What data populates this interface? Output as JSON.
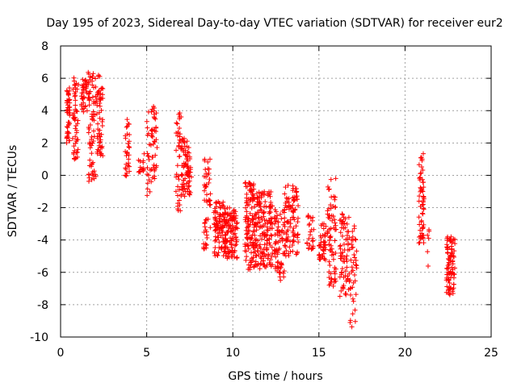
{
  "colors": {
    "series": "#ff0000",
    "grid": "#a0a0a0",
    "axis": "#000000"
  },
  "chart_data": {
    "type": "scatter",
    "title": "Day 195 of 2023, Sidereal Day-to-day VTEC variation (SDTVAR) for receiver eur2",
    "xlabel": "GPS time / hours",
    "ylabel": "SDTVAR / TECUs",
    "xlim": [
      0,
      25
    ],
    "ylim": [
      -10,
      8
    ],
    "xticks": [
      0,
      5,
      10,
      15,
      20,
      25
    ],
    "yticks": [
      -10,
      -8,
      -6,
      -4,
      -2,
      0,
      2,
      4,
      6,
      8
    ],
    "xtick_labels": [
      "0",
      "5",
      "10",
      "15",
      "20",
      "25"
    ],
    "ytick_labels": [
      "-10",
      "-8",
      "-6",
      "-4",
      "-2",
      "0",
      "2",
      "4",
      "6",
      "8"
    ],
    "grid": true,
    "marker": "plus",
    "series": [
      {
        "name": "SDTVAR",
        "clusters": [
          {
            "x": [
              0.35,
              0.55
            ],
            "y": [
              2.0,
              5.5
            ],
            "n": 45
          },
          {
            "x": [
              0.7,
              1.05
            ],
            "y": [
              1.0,
              6.2
            ],
            "n": 50
          },
          {
            "x": [
              1.2,
              1.55
            ],
            "y": [
              3.8,
              6.0
            ],
            "n": 35
          },
          {
            "x": [
              1.6,
              2.05
            ],
            "y": [
              -0.4,
              6.5
            ],
            "n": 70
          },
          {
            "x": [
              2.1,
              2.45
            ],
            "y": [
              1.2,
              6.2
            ],
            "n": 55
          },
          {
            "x": [
              3.75,
              4.0
            ],
            "y": [
              -0.2,
              3.6
            ],
            "n": 30
          },
          {
            "x": [
              4.5,
              4.85
            ],
            "y": [
              0.2,
              1.5
            ],
            "n": 15
          },
          {
            "x": [
              5.0,
              5.6
            ],
            "y": [
              -1.5,
              4.3
            ],
            "n": 60
          },
          {
            "x": [
              6.7,
              7.0
            ],
            "y": [
              -2.4,
              3.9
            ],
            "n": 40
          },
          {
            "x": [
              7.0,
              7.6
            ],
            "y": [
              -1.4,
              2.3
            ],
            "n": 80
          },
          {
            "x": [
              8.3,
              8.7
            ],
            "y": [
              -5.0,
              1.0
            ],
            "n": 50
          },
          {
            "x": [
              8.9,
              9.6
            ],
            "y": [
              -5.0,
              -1.6
            ],
            "n": 90
          },
          {
            "x": [
              9.5,
              10.3
            ],
            "y": [
              -5.2,
              -2.0
            ],
            "n": 110
          },
          {
            "x": [
              10.7,
              11.3
            ],
            "y": [
              -5.9,
              -0.3
            ],
            "n": 120
          },
          {
            "x": [
              11.3,
              12.3
            ],
            "y": [
              -5.8,
              -1.0
            ],
            "n": 160
          },
          {
            "x": [
              12.4,
              13.0
            ],
            "y": [
              -6.5,
              -2.0
            ],
            "n": 70
          },
          {
            "x": [
              13.0,
              13.8
            ],
            "y": [
              -5.0,
              -0.6
            ],
            "n": 100
          },
          {
            "x": [
              14.3,
              14.7
            ],
            "y": [
              -4.6,
              -2.4
            ],
            "n": 25
          },
          {
            "x": [
              15.0,
              15.4
            ],
            "y": [
              -5.5,
              -3.0
            ],
            "n": 40
          },
          {
            "x": [
              15.5,
              16.0
            ],
            "y": [
              -6.9,
              -0.1
            ],
            "n": 70
          },
          {
            "x": [
              16.2,
              16.8
            ],
            "y": [
              -7.5,
              -2.3
            ],
            "n": 70
          },
          {
            "x": [
              16.8,
              17.2
            ],
            "y": [
              -9.6,
              -2.8
            ],
            "n": 40
          },
          {
            "x": [
              20.8,
              21.1
            ],
            "y": [
              -4.2,
              1.4
            ],
            "n": 60
          },
          {
            "x": [
              21.3,
              21.4
            ],
            "y": [
              -5.8,
              -3.2
            ],
            "n": 6
          },
          {
            "x": [
              22.4,
              22.9
            ],
            "y": [
              -7.4,
              -3.8
            ],
            "n": 90
          }
        ]
      }
    ]
  }
}
